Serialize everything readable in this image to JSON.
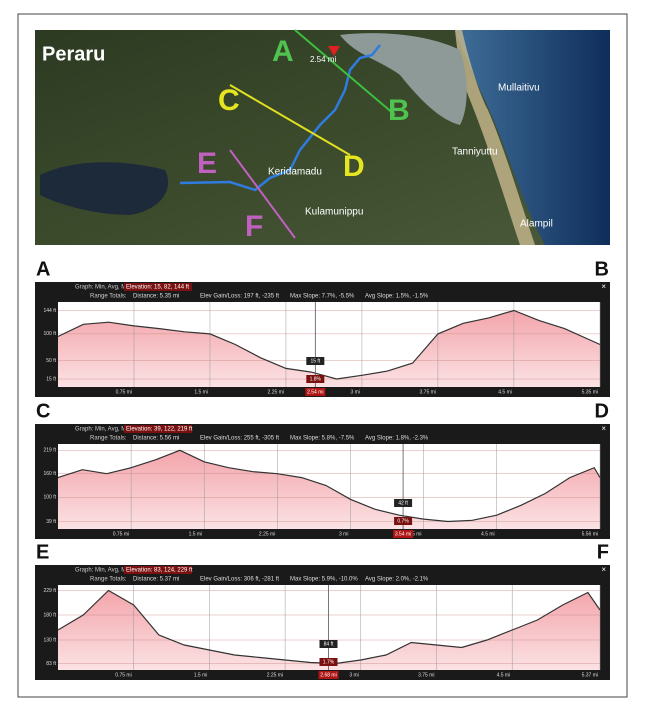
{
  "map": {
    "title": "Peraru",
    "markers": {
      "A": "A",
      "B": "B",
      "C": "C",
      "D": "D",
      "E": "E",
      "F": "F"
    },
    "places": [
      "Mullaitivu",
      "Tanniyuttu",
      "Keridamadu",
      "Kulamunippu",
      "Alampil"
    ],
    "distance_label": "2.54 mi"
  },
  "profiles": [
    {
      "start": "A",
      "end": "B",
      "graph_label": "Graph: Min, Avg, Max",
      "elevation": "Elevation: 15, 82, 144 ft",
      "range_label": "Range Totals:",
      "distance": "Distance: 5.35 mi",
      "gain_loss": "Elev Gain/Loss: 197 ft, -235 ft",
      "max_slope": "Max Slope: 7.7%, -5.5%",
      "avg_slope": "Avg Slope: 1.5%, -1.5%",
      "xlim": [
        0,
        5.35
      ],
      "ylim": [
        0,
        160
      ],
      "xticks": [
        {
          "value": 0.75,
          "label": "0.75 mi"
        },
        {
          "value": 1.5,
          "label": "1.5 mi"
        },
        {
          "value": 2.25,
          "label": "2.25 mi"
        },
        {
          "value": 3,
          "label": "3 mi"
        },
        {
          "value": 3.75,
          "label": "3.75 mi"
        },
        {
          "value": 4.5,
          "label": "4.5 mi"
        },
        {
          "value": 5.35,
          "label": "5.35 mi"
        }
      ],
      "yticks": [
        {
          "value": 144,
          "label": "144 ft"
        },
        {
          "value": 100,
          "label": "100 ft"
        },
        {
          "value": 50,
          "label": "50 ft"
        },
        {
          "value": 15,
          "label": "15 ft"
        }
      ],
      "cursor": {
        "x": 2.54,
        "x_label": "2.54 mi",
        "elevation_label": "15 ft",
        "slope_label": "1.8%"
      },
      "x": [
        0,
        0.25,
        0.5,
        0.75,
        1,
        1.25,
        1.5,
        1.75,
        2,
        2.25,
        2.5,
        2.75,
        3,
        3.25,
        3.5,
        3.75,
        4,
        4.25,
        4.5,
        4.75,
        5,
        5.35
      ],
      "values": [
        95,
        118,
        122,
        115,
        110,
        104,
        100,
        80,
        55,
        35,
        28,
        15,
        22,
        30,
        45,
        100,
        120,
        130,
        144,
        125,
        110,
        80
      ]
    },
    {
      "start": "C",
      "end": "D",
      "graph_label": "Graph: Min, Avg, Max",
      "elevation": "Elevation: 39, 122, 219 ft",
      "range_label": "Range Totals:",
      "distance": "Distance: 5.56 mi",
      "gain_loss": "Elev Gain/Loss: 255 ft, -305 ft",
      "max_slope": "Max Slope: 5.8%, -7.5%",
      "avg_slope": "Avg Slope: 1.8%, -2.3%",
      "xlim": [
        0,
        5.56
      ],
      "ylim": [
        20,
        235
      ],
      "xticks": [
        {
          "value": 0.75,
          "label": "0.75 mi"
        },
        {
          "value": 1.5,
          "label": "1.5 mi"
        },
        {
          "value": 2.25,
          "label": "2.25 mi"
        },
        {
          "value": 3,
          "label": "3 mi"
        },
        {
          "value": 3.75,
          "label": "3.75 mi"
        },
        {
          "value": 4.5,
          "label": "4.5 mi"
        },
        {
          "value": 5.56,
          "label": "5.56 mi"
        }
      ],
      "yticks": [
        {
          "value": 219,
          "label": "219 ft"
        },
        {
          "value": 160,
          "label": "160 ft"
        },
        {
          "value": 100,
          "label": "100 ft"
        },
        {
          "value": 39,
          "label": "39 ft"
        }
      ],
      "cursor": {
        "x": 3.54,
        "x_label": "3.54 mi",
        "elevation_label": "42 ft",
        "slope_label": "0.7%"
      },
      "x": [
        0,
        0.25,
        0.5,
        0.75,
        1,
        1.25,
        1.5,
        1.75,
        2,
        2.25,
        2.5,
        2.75,
        3,
        3.25,
        3.5,
        3.75,
        4,
        4.25,
        4.5,
        4.75,
        5,
        5.25,
        5.5,
        5.56
      ],
      "values": [
        150,
        170,
        160,
        175,
        195,
        219,
        190,
        175,
        165,
        160,
        150,
        130,
        95,
        70,
        55,
        45,
        39,
        42,
        55,
        80,
        110,
        150,
        175,
        150
      ]
    },
    {
      "start": "E",
      "end": "F",
      "graph_label": "Graph: Min, Avg, Max",
      "elevation": "Elevation: 83, 124, 229 ft",
      "range_label": "Range Totals:",
      "distance": "Distance: 5.37 mi",
      "gain_loss": "Elev Gain/Loss: 306 ft, -281 ft",
      "max_slope": "Max Slope: 5.9%, -10.0%",
      "avg_slope": "Avg Slope: 2.0%, -2.1%",
      "xlim": [
        0,
        5.37
      ],
      "ylim": [
        70,
        240
      ],
      "xticks": [
        {
          "value": 0.75,
          "label": "0.75 mi"
        },
        {
          "value": 1.5,
          "label": "1.5 mi"
        },
        {
          "value": 2.25,
          "label": "2.25 mi"
        },
        {
          "value": 3,
          "label": "3 mi"
        },
        {
          "value": 3.75,
          "label": "3.75 mi"
        },
        {
          "value": 4.5,
          "label": "4.5 mi"
        },
        {
          "value": 5.37,
          "label": "5.37 mi"
        }
      ],
      "yticks": [
        {
          "value": 229,
          "label": "229 ft"
        },
        {
          "value": 180,
          "label": "180 ft"
        },
        {
          "value": 130,
          "label": "130 ft"
        },
        {
          "value": 83,
          "label": "83 ft"
        }
      ],
      "cursor": {
        "x": 2.68,
        "x_label": "2.68 mi",
        "elevation_label": "84 ft",
        "slope_label": "1.7%"
      },
      "x": [
        0,
        0.25,
        0.5,
        0.75,
        1,
        1.25,
        1.5,
        1.75,
        2,
        2.25,
        2.5,
        2.75,
        3,
        3.25,
        3.5,
        3.75,
        4,
        4.25,
        4.5,
        4.75,
        5,
        5.25,
        5.37
      ],
      "values": [
        150,
        180,
        229,
        200,
        140,
        120,
        110,
        100,
        95,
        90,
        85,
        83,
        90,
        100,
        125,
        120,
        115,
        130,
        150,
        170,
        200,
        225,
        190
      ]
    }
  ]
}
